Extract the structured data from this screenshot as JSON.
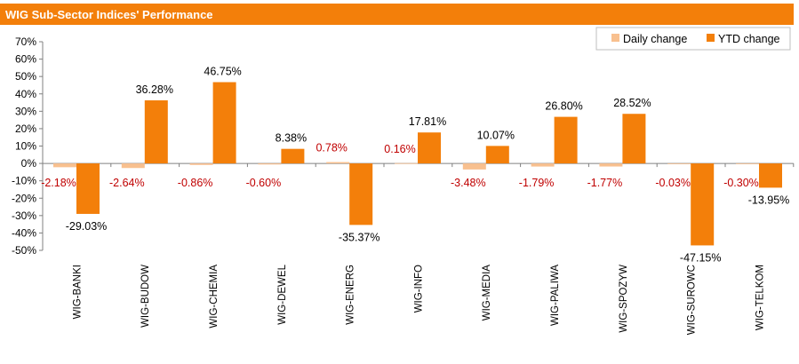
{
  "colors": {
    "header": "#F37F0A",
    "daily": "#F8C08F",
    "ytd": "#F37F0A",
    "daily_label": "#C00000",
    "ytd_label": "#000000",
    "axis": "#808080"
  },
  "chart_data": {
    "type": "bar",
    "title": "WIG Sub-Sector Indices' Performance",
    "categories": [
      "WIG-BANKI",
      "WIG-BUDOW",
      "WIG-CHEMIA",
      "WIG-DEWEL",
      "WIG-ENERG",
      "WIG-INFO",
      "WIG-MEDIA",
      "WIG-PALIWA",
      "WIG-SPOZYW",
      "WIG-SUROWC",
      "WIG-TELKOM"
    ],
    "series": [
      {
        "name": "Daily change",
        "values": [
          -2.18,
          -2.64,
          -0.86,
          -0.6,
          0.78,
          0.16,
          -3.48,
          -1.79,
          -1.77,
          -0.03,
          -0.3
        ],
        "labels": [
          "-2.18%",
          "-2.64%",
          "-0.86%",
          "-0.60%",
          "0.78%",
          "0.16%",
          "-3.48%",
          "-1.79%",
          "-1.77%",
          "-0.03%",
          "-0.30%"
        ]
      },
      {
        "name": "YTD change",
        "values": [
          -29.03,
          36.28,
          46.75,
          8.38,
          -35.37,
          17.81,
          10.07,
          26.8,
          28.52,
          -47.15,
          -13.95
        ],
        "labels": [
          "-29.03%",
          "36.28%",
          "46.75%",
          "8.38%",
          "-35.37%",
          "17.81%",
          "10.07%",
          "26.80%",
          "28.52%",
          "-47.15%",
          "-13.95%"
        ]
      }
    ],
    "yticks": [
      "70%",
      "60%",
      "50%",
      "40%",
      "30%",
      "20%",
      "10%",
      "0%",
      "-10%",
      "-20%",
      "-30%",
      "-40%",
      "-50%"
    ],
    "ylim": [
      -50,
      70
    ],
    "legend_position": "top-right",
    "grid": false
  }
}
